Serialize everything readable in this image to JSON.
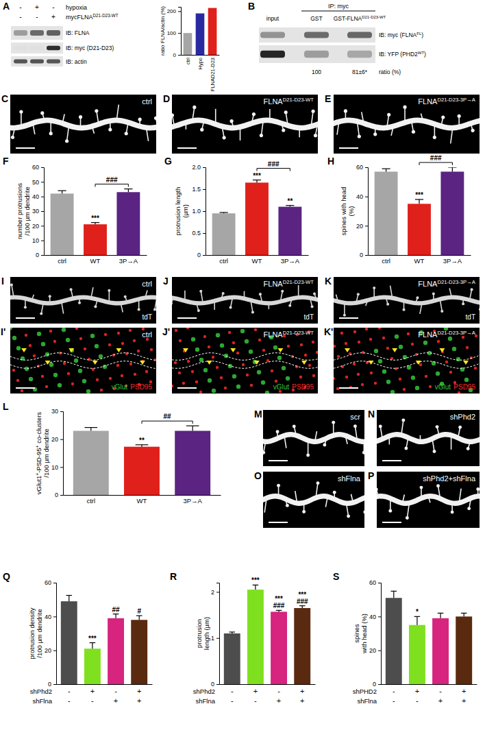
{
  "chart_data": [
    {
      "type": "bar",
      "panel": "A",
      "y_label": [
        [
          "ratio FLNA/actin (%)"
        ]
      ],
      "categories": [
        "ctrl",
        "Hypo",
        "FLNAD21-D23"
      ],
      "values": [
        100,
        190,
        215
      ],
      "colors": [
        "#a6a6a6",
        "#2a2aa0",
        "#e0201b"
      ],
      "ylim": [
        0,
        220
      ],
      "yticks": [
        0,
        100,
        200
      ]
    },
    {
      "type": "bar",
      "panel": "F",
      "y_label": [
        [
          "number protrusions"
        ],
        [
          "/100 µm dendrite"
        ]
      ],
      "categories": [
        "ctrl",
        "WT",
        "3P→A"
      ],
      "values": [
        42,
        21,
        43
      ],
      "errors": [
        2,
        1.2,
        2.2
      ],
      "colors": [
        "#a6a6a6",
        "#e0201b",
        "#5b2482"
      ],
      "ylim": [
        0,
        60
      ],
      "yticks": [
        0,
        10,
        20,
        30,
        40,
        50,
        60
      ],
      "annotations": [
        null,
        [
          "***"
        ],
        null
      ],
      "brackets": [
        {
          "text": "###",
          "from": 1,
          "to": 2
        }
      ]
    },
    {
      "type": "bar",
      "panel": "G",
      "y_label": [
        [
          "protrusion length"
        ],
        [
          "(µm)"
        ]
      ],
      "categories": [
        "ctrl",
        "WT",
        "3P→A"
      ],
      "values": [
        0.95,
        1.65,
        1.1
      ],
      "errors": [
        0.02,
        0.06,
        0.03
      ],
      "colors": [
        "#a6a6a6",
        "#e0201b",
        "#5b2482"
      ],
      "ylim": [
        0,
        2
      ],
      "yticks": [
        0,
        0.5,
        {
          "value": 1,
          "label": "1.0"
        },
        1.5,
        {
          "value": 2,
          "label": "2.0"
        }
      ],
      "annotations": [
        null,
        [
          "***"
        ],
        [
          "**"
        ]
      ],
      "brackets": [
        {
          "text": "###",
          "from": 1,
          "to": 2
        }
      ]
    },
    {
      "type": "bar",
      "panel": "H",
      "y_label": [
        [
          "spines with head"
        ],
        [
          "(%)"
        ]
      ],
      "categories": [
        "ctrl",
        "WT",
        "3P→A"
      ],
      "values": [
        57,
        35,
        57
      ],
      "errors": [
        2,
        3,
        3
      ],
      "colors": [
        "#a6a6a6",
        "#e0201b",
        "#5b2482"
      ],
      "ylim": [
        0,
        60
      ],
      "yticks": [
        0,
        20,
        40,
        60
      ],
      "annotations": [
        null,
        [
          "***"
        ],
        null
      ],
      "brackets": [
        {
          "text": "###",
          "from": 1,
          "to": 2
        }
      ]
    },
    {
      "type": "bar",
      "panel": "L",
      "y_label": [
        [
          "vGlut1",
          {
            "sup": "+"
          },
          "-PSD-95",
          {
            "sup": "+"
          },
          " co-clusters"
        ],
        [
          "/100 µm dendrite"
        ]
      ],
      "categories": [
        "ctrl",
        "WT",
        "3P→A"
      ],
      "values": [
        23,
        17.3,
        23
      ],
      "errors": [
        1.2,
        0.7,
        1.8
      ],
      "colors": [
        "#a6a6a6",
        "#e0201b",
        "#5b2482"
      ],
      "ylim": [
        0,
        30
      ],
      "yticks": [
        0,
        10,
        20,
        30
      ],
      "annotations": [
        null,
        [
          "**"
        ],
        null
      ],
      "brackets": [
        {
          "text": "##",
          "from": 1,
          "to": 2
        }
      ]
    },
    {
      "type": "bar",
      "panel": "Q",
      "y_label": [
        [
          "protrusion density"
        ],
        [
          "/100 µm dendrite"
        ]
      ],
      "categories": [
        null,
        null,
        null,
        null
      ],
      "values": [
        49,
        21,
        39,
        38
      ],
      "errors": [
        3.5,
        3.5,
        2.5,
        2.5
      ],
      "colors": [
        "#4d4d4d",
        "#7fe01f",
        "#d6247f",
        "#5a2a10"
      ],
      "ylim": [
        0,
        60
      ],
      "yticks": [
        0,
        20,
        40,
        60
      ],
      "annotations": [
        null,
        [
          "***"
        ],
        [
          "##"
        ],
        [
          "#"
        ]
      ],
      "condition_rows": [
        {
          "name": "shPhd2",
          "marks": [
            "-",
            "+",
            "-",
            "+"
          ]
        },
        {
          "name": "shFlna",
          "marks": [
            "-",
            "-",
            "+",
            "+"
          ]
        }
      ]
    },
    {
      "type": "bar",
      "panel": "R",
      "y_label": [
        [
          "protrusion"
        ],
        [
          "length (µm)"
        ]
      ],
      "categories": [
        null,
        null,
        null,
        null
      ],
      "values": [
        1.1,
        2.05,
        1.57,
        1.65
      ],
      "errors": [
        0.03,
        0.1,
        0.03,
        0.05
      ],
      "colors": [
        "#4d4d4d",
        "#7fe01f",
        "#d6247f",
        "#5a2a10"
      ],
      "ylim": [
        0,
        2.2
      ],
      "yticks": [
        0,
        1,
        2
      ],
      "annotations": [
        null,
        [
          "***"
        ],
        [
          "***",
          "###"
        ],
        [
          "***",
          "###"
        ]
      ],
      "condition_rows": [
        {
          "name": "shPhd2",
          "marks": [
            "-",
            "+",
            "-",
            "+"
          ]
        },
        {
          "name": "shFlna",
          "marks": [
            "-",
            "-",
            "+",
            "+"
          ]
        }
      ]
    },
    {
      "type": "bar",
      "panel": "S",
      "y_label": [
        [
          "spines"
        ],
        [
          "with head (%)"
        ]
      ],
      "categories": [
        null,
        null,
        null,
        null
      ],
      "values": [
        51,
        35,
        39,
        40
      ],
      "errors": [
        4,
        5,
        3,
        2
      ],
      "colors": [
        "#4d4d4d",
        "#7fe01f",
        "#d6247f",
        "#5a2a10"
      ],
      "ylim": [
        0,
        60
      ],
      "yticks": [
        0,
        20,
        40,
        60
      ],
      "annotations": [
        null,
        [
          "*"
        ],
        null,
        null
      ],
      "condition_rows": [
        {
          "name": "shPHD2",
          "marks": [
            "-",
            "+",
            "-",
            "+"
          ]
        },
        {
          "name": "shFlna",
          "marks": [
            "-",
            "-",
            "+",
            "+"
          ]
        }
      ]
    }
  ],
  "figure": {
    "blot_a": {
      "rows": [
        {
          "label": [
            "hypoxia"
          ],
          "marks": [
            "-",
            "+",
            "-"
          ]
        },
        {
          "label": [
            "mycFLNA",
            {
              "sup": "D21-D23-WT"
            }
          ],
          "marks": [
            "-",
            "-",
            "+"
          ]
        }
      ],
      "blots": [
        [
          "IB: FLNA"
        ],
        [
          "IB: myc (D21-D23)"
        ],
        [
          "IB: actin"
        ]
      ]
    },
    "blot_b": {
      "panel": "B",
      "ip": "IP: myc",
      "lanes": [
        [
          "input"
        ],
        [
          "GST"
        ],
        [
          "GST-FLNA",
          {
            "sup": "D21-D23-WT"
          }
        ]
      ],
      "blots": [
        [
          "IB: myc (FLNA",
          {
            "sup": "FL"
          },
          ")"
        ],
        [
          "IB: YFP (PHD2",
          {
            "sup": "WT"
          },
          ")"
        ]
      ],
      "ratios": [
        "100",
        "81±6*"
      ],
      "ratio_label": "ratio (%)"
    },
    "dendrite_images": [
      {
        "panel": "C",
        "label": [
          "ctrl"
        ]
      },
      {
        "panel": "D",
        "label": [
          "FLNA",
          {
            "sup": "D21-D23-WT"
          }
        ]
      },
      {
        "panel": "E",
        "label": [
          "FLNA",
          {
            "sup": "D21-D23-3P→A"
          }
        ]
      },
      {
        "panel": "I",
        "label": [
          "ctrl"
        ],
        "channel": "tdT"
      },
      {
        "panel": "J",
        "label": [
          "FLNA",
          {
            "sup": "D21-D23-WT"
          }
        ],
        "channel": "tdT"
      },
      {
        "panel": "K",
        "label": [
          "FLNA",
          {
            "sup": "D21-D23-3P→A"
          }
        ],
        "channel": "tdT"
      },
      {
        "panel": "M",
        "label": [
          "scr"
        ]
      },
      {
        "panel": "N",
        "label": [
          "shPhd2"
        ]
      },
      {
        "panel": "O",
        "label": [
          "shFlna"
        ]
      },
      {
        "panel": "P",
        "label": [
          "shPhd2+shFlna"
        ]
      }
    ],
    "puncta_images": [
      {
        "panel": "I'",
        "label": [
          "ctrl"
        ],
        "channels": [
          {
            "text": "vGlut",
            "color": "#35c43a"
          },
          {
            "text": "PSD95",
            "color": "#ff2a2a"
          }
        ]
      },
      {
        "panel": "J'",
        "label": [
          "FLNA",
          {
            "sup": "D21-D23-WT"
          }
        ],
        "channels": [
          {
            "text": "vGlut",
            "color": "#35c43a"
          },
          {
            "text": "PSD95",
            "color": "#ff2a2a"
          }
        ]
      },
      {
        "panel": "K'",
        "label": [
          "FLNA",
          {
            "sup": "D21-D23-3P→A"
          }
        ],
        "channels": [
          {
            "text": "vGlut",
            "color": "#35c43a"
          },
          {
            "text": "PSD95",
            "color": "#ff2a2a"
          }
        ]
      }
    ]
  }
}
